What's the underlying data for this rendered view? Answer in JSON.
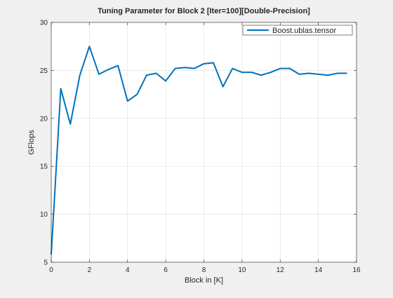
{
  "figure": {
    "background": "#f0f0f0",
    "axes_background": "#ffffff"
  },
  "chart_data": {
    "type": "line",
    "title": "Tuning Parameter for Block 2 [Iter=100][Double-Precision]",
    "xlabel": "Block in [K]",
    "ylabel": "GFlops",
    "xlim": [
      0,
      16
    ],
    "ylim": [
      5,
      30
    ],
    "xticks": [
      0,
      2,
      4,
      6,
      8,
      10,
      12,
      14,
      16
    ],
    "yticks": [
      5,
      10,
      15,
      20,
      25,
      30
    ],
    "grid": true,
    "legend_position": "top-right",
    "series": [
      {
        "name": "Boost.ublas.tensor",
        "color": "#0072bd",
        "x": [
          0,
          0.5,
          1,
          1.5,
          2,
          2.5,
          3,
          3.5,
          4,
          4.5,
          5,
          5.5,
          6,
          6.5,
          7,
          7.5,
          8,
          8.5,
          9,
          9.5,
          10,
          10.5,
          11,
          11.5,
          12,
          12.5,
          13,
          13.5,
          14,
          14.5,
          15,
          15.5
        ],
        "y": [
          5.8,
          23.1,
          19.4,
          24.5,
          27.5,
          24.6,
          25.1,
          25.5,
          21.8,
          22.5,
          24.5,
          24.7,
          23.9,
          25.2,
          25.3,
          25.2,
          25.7,
          25.8,
          23.3,
          25.2,
          24.8,
          24.8,
          24.5,
          24.8,
          25.2,
          25.2,
          24.6,
          24.7,
          24.6,
          24.5,
          24.7,
          24.7
        ]
      }
    ]
  }
}
